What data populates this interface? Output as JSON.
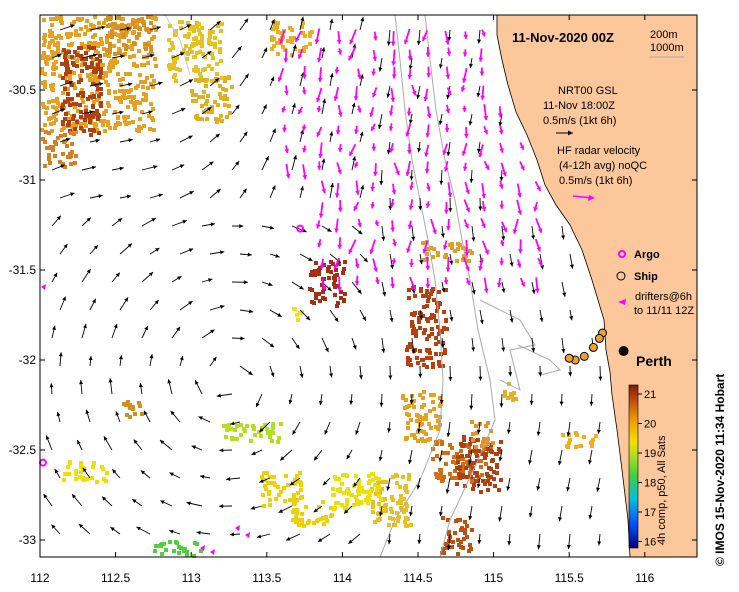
{
  "title": "11-Nov-2020 00Z",
  "isobaths": [
    "200m",
    "1000m"
  ],
  "legend": {
    "gsl": [
      "NRT00 GSL",
      "11-Nov 18:00Z",
      "0.5m/s (1kt 6h)"
    ],
    "hf": [
      "HF radar velocity",
      "(4-12h avg) noQC",
      "0.5m/s (1kt 6h)"
    ],
    "argo": "Argo",
    "ship": "Ship",
    "drifters": [
      "drifters@6h",
      "to 11/11 12Z"
    ]
  },
  "city": "Perth",
  "colorbar": {
    "ticks": [
      "21",
      "20",
      "19",
      "18",
      "17",
      "16"
    ],
    "label": "4h comp, p50, All Sats"
  },
  "credit": "© IMOS 15-Nov-2020 11:34 Hobart",
  "colors": {
    "land": "#fcc79a",
    "gsl_arrow": "#000000",
    "hf_arrow": "#ff00ff",
    "isobath": "#aaaaaa",
    "ship": "#f0a030"
  },
  "chart_data": {
    "type": "map",
    "xlim": [
      112,
      116.3
    ],
    "ylim": [
      -33.1,
      -30.1
    ],
    "xticks": [
      112,
      112.5,
      113,
      113.5,
      114,
      114.5,
      115,
      115.5,
      116
    ],
    "xtick_labels": [
      "112",
      "112.5",
      "113",
      "113.5",
      "114",
      "114.5",
      "115",
      "115.5",
      "116"
    ],
    "yticks": [
      -30.5,
      -31,
      -31.5,
      -32,
      -32.5,
      -33
    ],
    "ytick_labels": [
      "-30.5",
      "-31",
      "-31.5",
      "-32",
      "-32.5",
      "-33"
    ],
    "perth": [
      115.86,
      -31.95
    ],
    "argo": [
      [
        113.72,
        -31.27
      ],
      [
        112.02,
        -32.57
      ]
    ],
    "ships": [
      [
        115.72,
        -31.85
      ],
      [
        115.7,
        -31.88
      ],
      [
        115.66,
        -31.93
      ],
      [
        115.6,
        -31.98
      ],
      [
        115.54,
        -32.0
      ],
      [
        115.5,
        -31.99
      ]
    ]
  }
}
